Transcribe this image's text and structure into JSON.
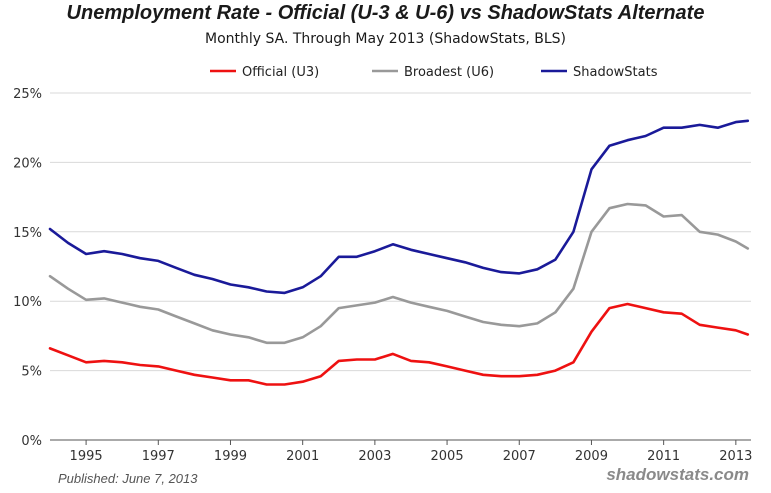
{
  "chart_data": {
    "type": "line",
    "title": "Unemployment Rate - Official (U-3 & U-6) vs ShadowStats Alternate",
    "subtitle": "Monthly SA. Through May 2013  (ShadowStats, BLS)",
    "xlabel": "",
    "ylabel": "",
    "xlim": [
      1994.0,
      2013.42
    ],
    "ylim": [
      0,
      25
    ],
    "x_ticks": [
      1995,
      1997,
      1999,
      2001,
      2003,
      2005,
      2007,
      2009,
      2011,
      2013
    ],
    "y_ticks": [
      0,
      5,
      10,
      15,
      20,
      25
    ],
    "y_tick_labels": [
      "0%",
      "5%",
      "10%",
      "15%",
      "20%",
      "25%"
    ],
    "grid": true,
    "legend_position": "top",
    "series": [
      {
        "name": "Official (U3)",
        "color": "#ee1111",
        "x": [
          1994.0,
          1994.5,
          1995.0,
          1995.5,
          1996.0,
          1996.5,
          1997.0,
          1997.5,
          1998.0,
          1998.5,
          1999.0,
          1999.5,
          2000.0,
          2000.5,
          2001.0,
          2001.5,
          2002.0,
          2002.5,
          2003.0,
          2003.5,
          2004.0,
          2004.5,
          2005.0,
          2005.5,
          2006.0,
          2006.5,
          2007.0,
          2007.5,
          2008.0,
          2008.5,
          2009.0,
          2009.5,
          2010.0,
          2010.5,
          2011.0,
          2011.5,
          2012.0,
          2012.5,
          2013.0,
          2013.33
        ],
        "y": [
          6.6,
          6.1,
          5.6,
          5.7,
          5.6,
          5.4,
          5.3,
          5.0,
          4.7,
          4.5,
          4.3,
          4.3,
          4.0,
          4.0,
          4.2,
          4.6,
          5.7,
          5.8,
          5.8,
          6.2,
          5.7,
          5.6,
          5.3,
          5.0,
          4.7,
          4.6,
          4.6,
          4.7,
          5.0,
          5.6,
          7.8,
          9.5,
          9.8,
          9.5,
          9.2,
          9.1,
          8.3,
          8.1,
          7.9,
          7.6
        ]
      },
      {
        "name": "Broadest (U6)",
        "color": "#999999",
        "x": [
          1994.0,
          1994.5,
          1995.0,
          1995.5,
          1996.0,
          1996.5,
          1997.0,
          1997.5,
          1998.0,
          1998.5,
          1999.0,
          1999.5,
          2000.0,
          2000.5,
          2001.0,
          2001.5,
          2002.0,
          2002.5,
          2003.0,
          2003.5,
          2004.0,
          2004.5,
          2005.0,
          2005.5,
          2006.0,
          2006.5,
          2007.0,
          2007.5,
          2008.0,
          2008.5,
          2009.0,
          2009.5,
          2010.0,
          2010.5,
          2011.0,
          2011.5,
          2012.0,
          2012.5,
          2013.0,
          2013.33
        ],
        "y": [
          11.8,
          10.9,
          10.1,
          10.2,
          9.9,
          9.6,
          9.4,
          8.9,
          8.4,
          7.9,
          7.6,
          7.4,
          7.0,
          7.0,
          7.4,
          8.2,
          9.5,
          9.7,
          9.9,
          10.3,
          9.9,
          9.6,
          9.3,
          8.9,
          8.5,
          8.3,
          8.2,
          8.4,
          9.2,
          10.9,
          15.0,
          16.7,
          17.0,
          16.9,
          16.1,
          16.2,
          15.0,
          14.8,
          14.3,
          13.8
        ]
      },
      {
        "name": "ShadowStats",
        "color": "#1a1a99",
        "x": [
          1994.0,
          1994.5,
          1995.0,
          1995.5,
          1996.0,
          1996.5,
          1997.0,
          1997.5,
          1998.0,
          1998.5,
          1999.0,
          1999.5,
          2000.0,
          2000.5,
          2001.0,
          2001.5,
          2002.0,
          2002.5,
          2003.0,
          2003.5,
          2004.0,
          2004.5,
          2005.0,
          2005.5,
          2006.0,
          2006.5,
          2007.0,
          2007.5,
          2008.0,
          2008.5,
          2009.0,
          2009.5,
          2010.0,
          2010.5,
          2011.0,
          2011.5,
          2012.0,
          2012.5,
          2013.0,
          2013.33
        ],
        "y": [
          15.2,
          14.2,
          13.4,
          13.6,
          13.4,
          13.1,
          12.9,
          12.4,
          11.9,
          11.6,
          11.2,
          11.0,
          10.7,
          10.6,
          11.0,
          11.8,
          13.2,
          13.2,
          13.6,
          14.1,
          13.7,
          13.4,
          13.1,
          12.8,
          12.4,
          12.1,
          12.0,
          12.3,
          13.0,
          15.0,
          19.5,
          21.2,
          21.6,
          21.9,
          22.5,
          22.5,
          22.7,
          22.5,
          22.9,
          23.0
        ]
      }
    ],
    "published": "Published: June 7, 2013",
    "source_mark": "shadowstats.com"
  }
}
